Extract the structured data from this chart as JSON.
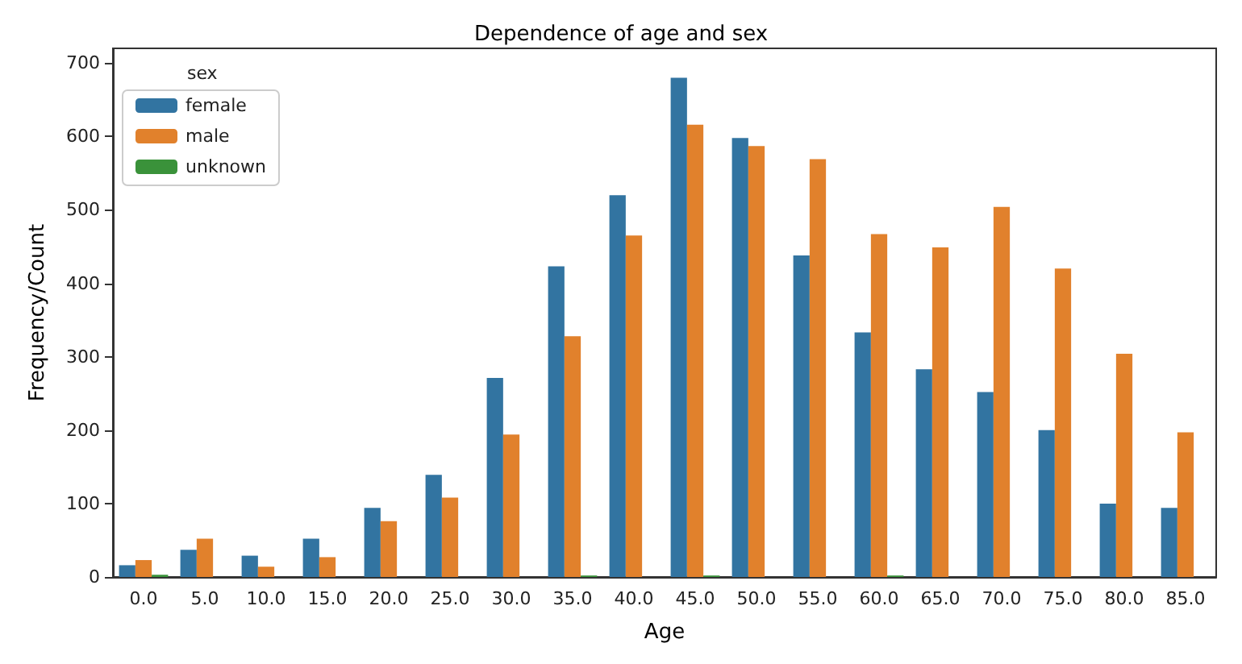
{
  "chart_data": {
    "type": "bar",
    "title": "Dependence of age and sex",
    "xlabel": "Age",
    "ylabel": "Frequency/Count",
    "legend_title": "sex",
    "legend": "top left",
    "grid": false,
    "categories": [
      "0.0",
      "5.0",
      "10.0",
      "15.0",
      "20.0",
      "25.0",
      "30.0",
      "35.0",
      "40.0",
      "45.0",
      "50.0",
      "55.0",
      "60.0",
      "65.0",
      "70.0",
      "75.0",
      "80.0",
      "85.0"
    ],
    "ylim": [
      0,
      720
    ],
    "yticks": [
      0,
      100,
      200,
      300,
      400,
      500,
      600,
      700
    ],
    "series": [
      {
        "name": "female",
        "color": "#3274a1",
        "values": [
          16,
          37,
          29,
          52,
          94,
          139,
          271,
          423,
          520,
          680,
          598,
          438,
          333,
          283,
          252,
          200,
          100,
          94
        ]
      },
      {
        "name": "male",
        "color": "#e1812c",
        "values": [
          23,
          52,
          14,
          27,
          76,
          108,
          194,
          328,
          465,
          616,
          587,
          569,
          467,
          449,
          504,
          420,
          304,
          197
        ]
      },
      {
        "name": "unknown",
        "color": "#3a923a",
        "values": [
          3,
          null,
          null,
          null,
          null,
          null,
          null,
          2,
          null,
          2,
          null,
          null,
          2,
          null,
          null,
          null,
          null,
          null
        ]
      }
    ]
  }
}
